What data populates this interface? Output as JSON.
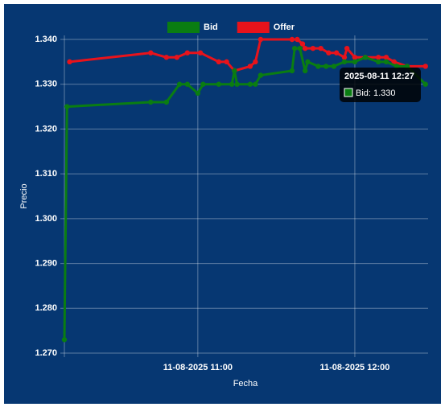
{
  "chart_data": {
    "type": "line",
    "x_label": "Fecha",
    "y_label": "Precio",
    "xlim": [
      "2025-08-11 10:09",
      "2025-08-11 12:28"
    ],
    "xticks": [
      {
        "value": "2025-08-11 11:00",
        "label": "11-08-2025 11:00"
      },
      {
        "value": "2025-08-11 12:00",
        "label": "11-08-2025 12:00"
      }
    ],
    "ylim": [
      1.27,
      1.34
    ],
    "yticks": [
      {
        "value": 1.27,
        "label": "1.270"
      },
      {
        "value": 1.28,
        "label": "1.280"
      },
      {
        "value": 1.29,
        "label": "1.290"
      },
      {
        "value": 1.3,
        "label": "1.300"
      },
      {
        "value": 1.31,
        "label": "1.310"
      },
      {
        "value": 1.32,
        "label": "1.320"
      },
      {
        "value": 1.33,
        "label": "1.330"
      },
      {
        "value": 1.34,
        "label": "1.340"
      }
    ],
    "grid": true,
    "legend_position": "top",
    "series": [
      {
        "name": "Bid",
        "color": "#0a7d12",
        "x": [
          "2025-08-11 10:09",
          "2025-08-11 10:10",
          "2025-08-11 10:42",
          "2025-08-11 10:48",
          "2025-08-11 10:53",
          "2025-08-11 10:56",
          "2025-08-11 11:00",
          "2025-08-11 11:02",
          "2025-08-11 11:08",
          "2025-08-11 11:13",
          "2025-08-11 11:14",
          "2025-08-11 11:15",
          "2025-08-11 11:20",
          "2025-08-11 11:22",
          "2025-08-11 11:24",
          "2025-08-11 11:36",
          "2025-08-11 11:37",
          "2025-08-11 11:39",
          "2025-08-11 11:41",
          "2025-08-11 11:42",
          "2025-08-11 11:46",
          "2025-08-11 11:49",
          "2025-08-11 11:52",
          "2025-08-11 11:56",
          "2025-08-11 12:00",
          "2025-08-11 12:04",
          "2025-08-11 12:09",
          "2025-08-11 12:12",
          "2025-08-11 12:16",
          "2025-08-11 12:20",
          "2025-08-11 12:27"
        ],
        "values": [
          1.273,
          1.325,
          1.326,
          1.326,
          1.33,
          1.33,
          1.328,
          1.33,
          1.33,
          1.33,
          1.333,
          1.33,
          1.33,
          1.33,
          1.332,
          1.333,
          1.338,
          1.338,
          1.333,
          1.335,
          1.334,
          1.334,
          1.334,
          1.335,
          1.335,
          1.336,
          1.335,
          1.335,
          1.334,
          1.334,
          1.33
        ]
      },
      {
        "name": "Offer",
        "color": "#e8131b",
        "x": [
          "2025-08-11 10:11",
          "2025-08-11 10:42",
          "2025-08-11 10:48",
          "2025-08-11 10:52",
          "2025-08-11 10:56",
          "2025-08-11 11:01",
          "2025-08-11 11:08",
          "2025-08-11 11:11",
          "2025-08-11 11:14",
          "2025-08-11 11:20",
          "2025-08-11 11:22",
          "2025-08-11 11:24",
          "2025-08-11 11:36",
          "2025-08-11 11:38",
          "2025-08-11 11:40",
          "2025-08-11 11:41",
          "2025-08-11 11:44",
          "2025-08-11 11:47",
          "2025-08-11 11:50",
          "2025-08-11 11:53",
          "2025-08-11 11:56",
          "2025-08-11 11:57",
          "2025-08-11 12:00",
          "2025-08-11 12:04",
          "2025-08-11 12:09",
          "2025-08-11 12:12",
          "2025-08-11 12:15",
          "2025-08-11 12:20",
          "2025-08-11 12:27"
        ],
        "values": [
          1.335,
          1.337,
          1.336,
          1.336,
          1.337,
          1.337,
          1.335,
          1.335,
          1.333,
          1.334,
          1.335,
          1.34,
          1.34,
          1.34,
          1.339,
          1.338,
          1.338,
          1.338,
          1.337,
          1.337,
          1.336,
          1.338,
          1.336,
          1.336,
          1.336,
          1.336,
          1.335,
          1.334,
          1.334
        ]
      }
    ],
    "tooltip": {
      "title": "2025-08-11 12:27",
      "label": "Bid: 1.330"
    }
  }
}
